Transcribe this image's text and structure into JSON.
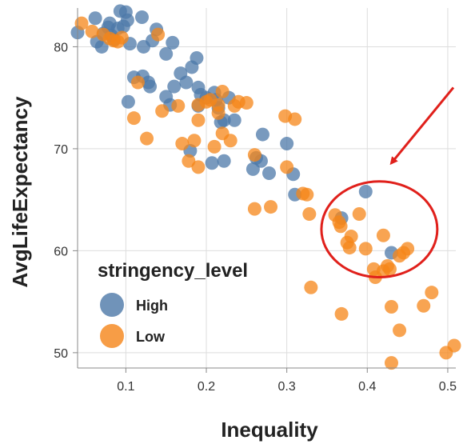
{
  "chart_data": {
    "type": "scatter",
    "title": "",
    "xlabel": "Inequality",
    "ylabel": "AvgLifeExpectancy",
    "xlim": [
      0.04,
      0.51
    ],
    "ylim": [
      48.5,
      83.8
    ],
    "x_ticks": [
      "0.1",
      "0.2",
      "0.3",
      "0.4",
      "0.5"
    ],
    "y_ticks": [
      "50",
      "60",
      "70",
      "80"
    ],
    "grid": true,
    "legend": {
      "title": "stringency_level",
      "placement": "bottom-left",
      "items": [
        {
          "label": "High",
          "color": "#4c78a8"
        },
        {
          "label": "Low",
          "color": "#f58518"
        }
      ]
    },
    "series": [
      {
        "name": "High",
        "color": "#4c78a8",
        "points": [
          [
            0.04,
            81.4
          ],
          [
            0.062,
            82.8
          ],
          [
            0.064,
            80.5
          ],
          [
            0.07,
            80.0
          ],
          [
            0.072,
            81.3
          ],
          [
            0.078,
            81.9
          ],
          [
            0.08,
            82.3
          ],
          [
            0.082,
            81.1
          ],
          [
            0.085,
            80.7
          ],
          [
            0.09,
            81.8
          ],
          [
            0.093,
            83.5
          ],
          [
            0.097,
            82.0
          ],
          [
            0.1,
            83.4
          ],
          [
            0.102,
            82.6
          ],
          [
            0.105,
            80.3
          ],
          [
            0.103,
            74.6
          ],
          [
            0.11,
            77.0
          ],
          [
            0.12,
            82.9
          ],
          [
            0.122,
            80.0
          ],
          [
            0.121,
            77.1
          ],
          [
            0.128,
            76.5
          ],
          [
            0.13,
            76.1
          ],
          [
            0.133,
            80.6
          ],
          [
            0.138,
            81.7
          ],
          [
            0.15,
            79.3
          ],
          [
            0.15,
            75.1
          ],
          [
            0.155,
            74.3
          ],
          [
            0.158,
            80.4
          ],
          [
            0.16,
            76.1
          ],
          [
            0.168,
            77.4
          ],
          [
            0.175,
            76.5
          ],
          [
            0.182,
            78.0
          ],
          [
            0.188,
            78.9
          ],
          [
            0.19,
            76.0
          ],
          [
            0.193,
            75.3
          ],
          [
            0.19,
            74.2
          ],
          [
            0.2,
            75.0
          ],
          [
            0.21,
            75.5
          ],
          [
            0.212,
            74.8
          ],
          [
            0.218,
            72.6
          ],
          [
            0.222,
            72.8
          ],
          [
            0.215,
            74.0
          ],
          [
            0.228,
            75.0
          ],
          [
            0.235,
            72.8
          ],
          [
            0.18,
            69.8
          ],
          [
            0.207,
            68.6
          ],
          [
            0.222,
            68.8
          ],
          [
            0.258,
            68.0
          ],
          [
            0.262,
            69.1
          ],
          [
            0.268,
            68.8
          ],
          [
            0.27,
            71.4
          ],
          [
            0.278,
            67.6
          ],
          [
            0.3,
            70.5
          ],
          [
            0.308,
            67.5
          ],
          [
            0.31,
            65.5
          ],
          [
            0.368,
            63.2
          ],
          [
            0.398,
            65.8
          ],
          [
            0.43,
            59.8
          ]
        ]
      },
      {
        "name": "Low",
        "color": "#f58518",
        "points": [
          [
            0.045,
            82.3
          ],
          [
            0.058,
            81.5
          ],
          [
            0.072,
            81.2
          ],
          [
            0.08,
            80.8
          ],
          [
            0.085,
            80.6
          ],
          [
            0.09,
            80.5
          ],
          [
            0.095,
            80.9
          ],
          [
            0.11,
            73.0
          ],
          [
            0.115,
            76.5
          ],
          [
            0.126,
            71.0
          ],
          [
            0.14,
            81.2
          ],
          [
            0.145,
            73.7
          ],
          [
            0.165,
            74.2
          ],
          [
            0.17,
            70.5
          ],
          [
            0.178,
            68.8
          ],
          [
            0.185,
            70.8
          ],
          [
            0.19,
            72.8
          ],
          [
            0.19,
            74.3
          ],
          [
            0.19,
            68.2
          ],
          [
            0.2,
            74.6
          ],
          [
            0.205,
            74.8
          ],
          [
            0.21,
            70.2
          ],
          [
            0.215,
            74.3
          ],
          [
            0.215,
            73.5
          ],
          [
            0.22,
            75.6
          ],
          [
            0.22,
            71.5
          ],
          [
            0.23,
            70.8
          ],
          [
            0.235,
            74.2
          ],
          [
            0.24,
            74.6
          ],
          [
            0.25,
            74.5
          ],
          [
            0.26,
            64.1
          ],
          [
            0.26,
            69.4
          ],
          [
            0.28,
            64.3
          ],
          [
            0.298,
            73.2
          ],
          [
            0.3,
            68.2
          ],
          [
            0.31,
            72.9
          ],
          [
            0.32,
            65.6
          ],
          [
            0.325,
            65.5
          ],
          [
            0.328,
            63.6
          ],
          [
            0.33,
            56.4
          ],
          [
            0.36,
            63.5
          ],
          [
            0.365,
            62.8
          ],
          [
            0.367,
            62.4
          ],
          [
            0.368,
            53.8
          ],
          [
            0.375,
            60.8
          ],
          [
            0.378,
            60.3
          ],
          [
            0.38,
            61.4
          ],
          [
            0.39,
            63.6
          ],
          [
            0.398,
            60.2
          ],
          [
            0.408,
            58.2
          ],
          [
            0.41,
            57.4
          ],
          [
            0.42,
            61.5
          ],
          [
            0.42,
            58.0
          ],
          [
            0.425,
            58.5
          ],
          [
            0.428,
            58.2
          ],
          [
            0.43,
            54.5
          ],
          [
            0.43,
            49.0
          ],
          [
            0.44,
            52.2
          ],
          [
            0.44,
            59.5
          ],
          [
            0.445,
            59.8
          ],
          [
            0.45,
            60.2
          ],
          [
            0.47,
            54.6
          ],
          [
            0.48,
            55.9
          ],
          [
            0.498,
            50.0
          ],
          [
            0.508,
            50.7
          ]
        ]
      }
    ],
    "annotations": [
      {
        "type": "ellipse",
        "color": "#e0201b",
        "cx": 0.415,
        "cy": 62.1,
        "rx": 0.072,
        "ry": 4.7
      },
      {
        "type": "arrow",
        "color": "#e0201b",
        "from": [
          0.507,
          76.0
        ],
        "to": [
          0.43,
          68.6
        ]
      }
    ]
  }
}
